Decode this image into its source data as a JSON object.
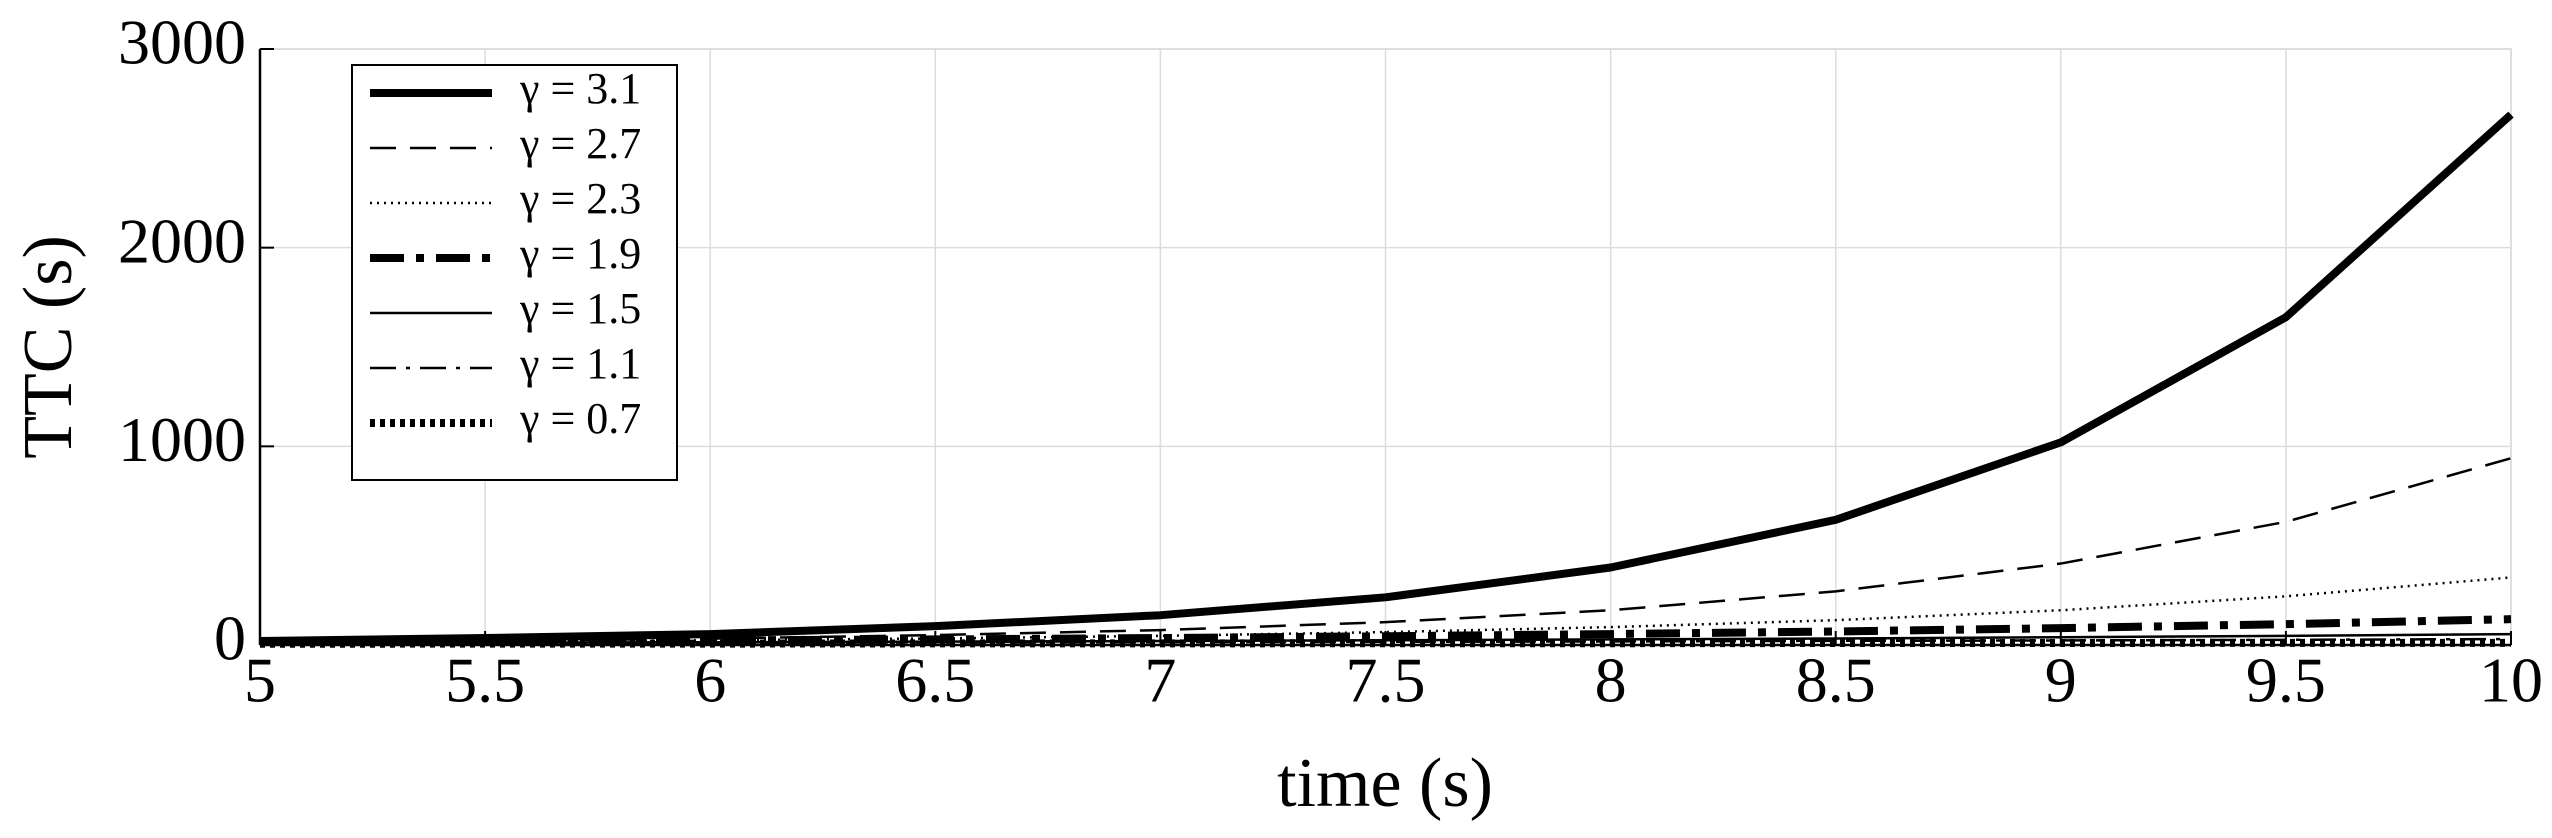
{
  "chart_data": {
    "type": "line",
    "x_label": "time (s)",
    "y_label": "TTC (s)",
    "x": [
      5,
      5.5,
      6,
      6.5,
      7,
      7.5,
      8,
      8.5,
      9,
      9.5,
      10
    ],
    "xlim": [
      5,
      10
    ],
    "xticks": [
      5,
      5.5,
      6,
      6.5,
      7,
      7.5,
      8,
      8.5,
      9,
      9.5,
      10
    ],
    "ylim": [
      0,
      3000
    ],
    "yticks": [
      0,
      1000,
      2000,
      3000
    ],
    "grid": true,
    "legend": "upper left",
    "series": [
      {
        "name": "γ = 3.1",
        "color": "#000000",
        "linestyle": "solid",
        "linewidth": 8,
        "values": [
          20,
          35,
          55,
          95,
          150,
          240,
          390,
          630,
          1020,
          1650,
          2670
        ]
      },
      {
        "name": "γ = 2.7",
        "color": "#000000",
        "linestyle": "dashed",
        "linewidth": 2.5,
        "values": [
          13,
          20,
          32,
          50,
          75,
          115,
          175,
          270,
          410,
          620,
          940
        ]
      },
      {
        "name": "γ = 2.3",
        "color": "#000000",
        "linestyle": "dotted",
        "linewidth": 2.5,
        "values": [
          12,
          17,
          24,
          33,
          46,
          65,
          90,
          125,
          175,
          245,
          340
        ]
      },
      {
        "name": "γ = 1.9",
        "color": "#000000",
        "linestyle": "dashdot",
        "linewidth": 8,
        "values": [
          15,
          18,
          23,
          28,
          35,
          44,
          55,
          68,
          85,
          105,
          130
        ]
      },
      {
        "name": "γ = 1.5",
        "color": "#000000",
        "linestyle": "solid",
        "linewidth": 2.5,
        "values": [
          10,
          12,
          14,
          17,
          20,
          24,
          28,
          33,
          39,
          46,
          55
        ]
      },
      {
        "name": "γ = 1.1",
        "color": "#000000",
        "linestyle": "dashdot",
        "linewidth": 2.5,
        "values": [
          8,
          9,
          11,
          12,
          14,
          16,
          18,
          21,
          23,
          26,
          30
        ]
      },
      {
        "name": "γ = 0.7",
        "color": "#000000",
        "linestyle": "dotted",
        "linewidth": 8,
        "values": [
          6,
          7,
          7,
          8,
          8,
          9,
          9,
          10,
          10,
          11,
          11
        ]
      }
    ]
  }
}
